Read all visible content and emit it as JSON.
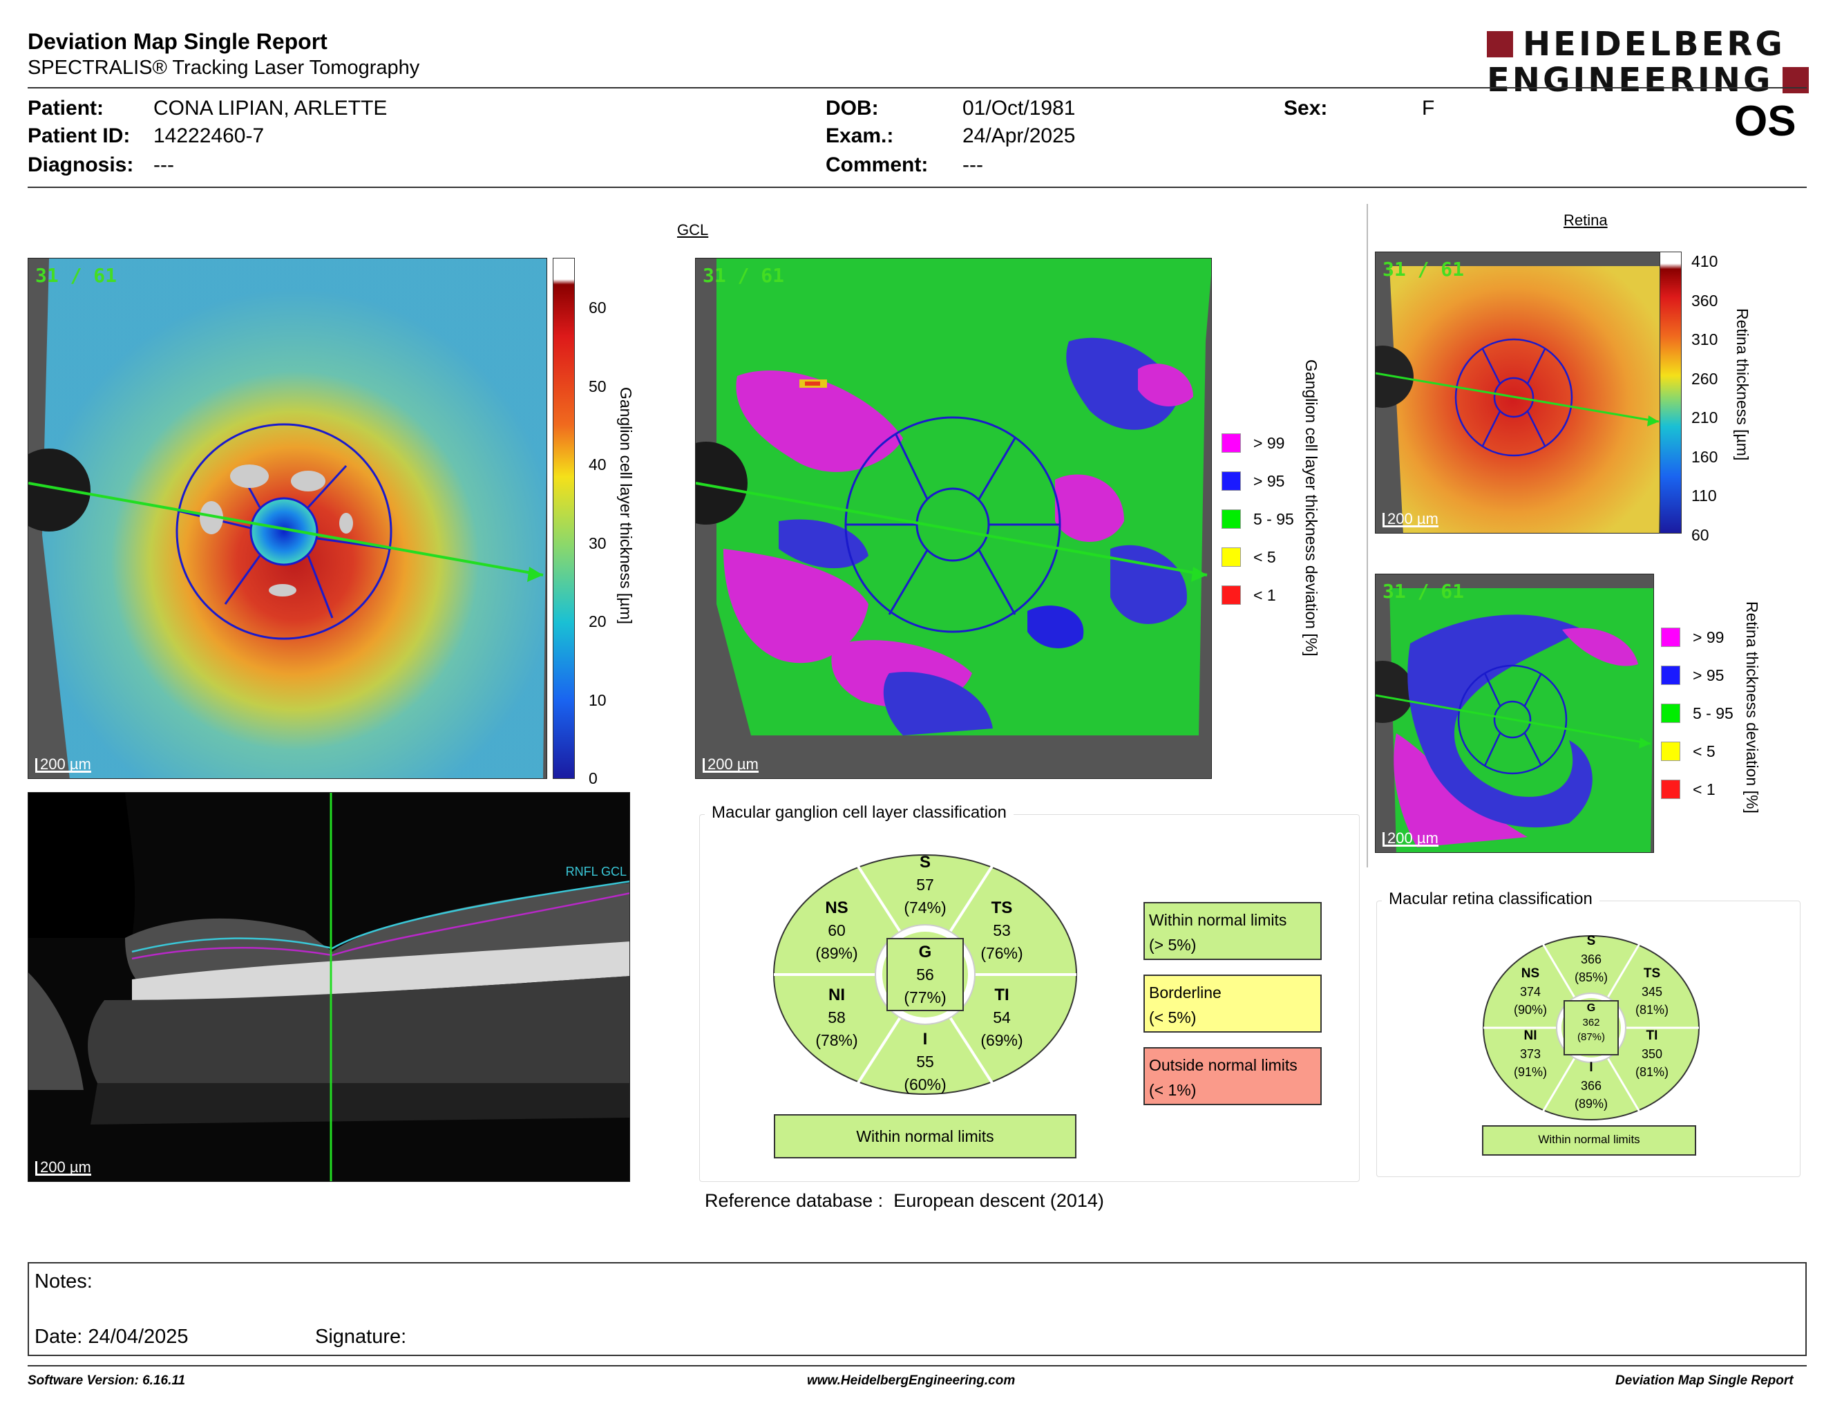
{
  "header": {
    "title": "Deviation Map Single Report",
    "subtitle": "SPECTRALIS® Tracking Laser Tomography",
    "logo_line1": "HEIDELBERG",
    "logo_line2": "ENGINEERING",
    "eye": "OS"
  },
  "patient": {
    "patient_label": "Patient:",
    "patient_value": "CONA LIPIAN, ARLETTE",
    "id_label": "Patient ID:",
    "id_value": "14222460-7",
    "diag_label": "Diagnosis:",
    "diag_value": "---",
    "dob_label": "DOB:",
    "dob_value": "01/Oct/1981",
    "exam_label": "Exam.:",
    "exam_value": "24/Apr/2025",
    "comment_label": "Comment:",
    "comment_value": "---",
    "sex_label": "Sex:",
    "sex_value": "F"
  },
  "gcl": {
    "section_title": "GCL",
    "scan_index": "31 / 61",
    "scale": "200 µm",
    "thickness_ticks": [
      "60",
      "50",
      "40",
      "30",
      "20",
      "10",
      "0"
    ],
    "thickness_label": "Ganglion cell layer thickness [µm]",
    "deviation_label": "Ganglion cell layer thickness deviation [%]"
  },
  "legend": [
    {
      "label": "> 99",
      "color": "#ff00ff"
    },
    {
      "label": "> 95",
      "color": "#1a1aff"
    },
    {
      "label": "5 - 95",
      "color": "#00ee00"
    },
    {
      "label": "< 5",
      "color": "#ffff00"
    },
    {
      "label": "< 1",
      "color": "#ff1a1a"
    }
  ],
  "bscan": {
    "scale": "200 µm",
    "tags": "RNFL GCL"
  },
  "retina": {
    "section_title": "Retina",
    "scan_index": "31 / 61",
    "scale": "200 µm",
    "thickness_ticks": [
      "410",
      "360",
      "310",
      "260",
      "210",
      "160",
      "110",
      "60"
    ],
    "thickness_label": "Retina thickness [µm]",
    "deviation_label": "Retina thickness deviation [%]"
  },
  "gcl_class": {
    "title": "Macular ganglion cell layer classification",
    "S": {
      "label": "S",
      "value": "57",
      "pct": "(74%)"
    },
    "TS": {
      "label": "TS",
      "value": "53",
      "pct": "(76%)"
    },
    "TI": {
      "label": "TI",
      "value": "54",
      "pct": "(69%)"
    },
    "I": {
      "label": "I",
      "value": "55",
      "pct": "(60%)"
    },
    "NI": {
      "label": "NI",
      "value": "58",
      "pct": "(78%)"
    },
    "NS": {
      "label": "NS",
      "value": "60",
      "pct": "(89%)"
    },
    "G": {
      "label": "G",
      "value": "56",
      "pct": "(77%)"
    },
    "overall": "Within normal limits"
  },
  "class_legend": {
    "normal_l1": "Within normal limits",
    "normal_l2": "(> 5%)",
    "border_l1": "Borderline",
    "border_l2": "(< 5%)",
    "outside_l1": "Outside normal limits",
    "outside_l2": "(< 1%)"
  },
  "ret_class": {
    "title": "Macular retina classification",
    "S": {
      "label": "S",
      "value": "366",
      "pct": "(85%)"
    },
    "TS": {
      "label": "TS",
      "value": "345",
      "pct": "(81%)"
    },
    "TI": {
      "label": "TI",
      "value": "350",
      "pct": "(81%)"
    },
    "I": {
      "label": "I",
      "value": "366",
      "pct": "(89%)"
    },
    "NI": {
      "label": "NI",
      "value": "373",
      "pct": "(91%)"
    },
    "NS": {
      "label": "NS",
      "value": "374",
      "pct": "(90%)"
    },
    "G": {
      "label": "G",
      "value": "362",
      "pct": "(87%)"
    },
    "overall": "Within normal limits"
  },
  "reference": {
    "label": "Reference database :",
    "value": "European descent (2014)"
  },
  "notes": {
    "notes_label": "Notes:",
    "date_label": "Date: 24/04/2025",
    "signature_label": "Signature:"
  },
  "footer": {
    "software": "Software Version: 6.16.11",
    "website": "www.HeidelbergEngineering.com",
    "report": "Deviation Map Single Report"
  },
  "colors": {
    "within": "#c8f08c",
    "borderline": "#ffff8c",
    "outside": "#fa9a8a",
    "logo": "#8c1a26"
  }
}
